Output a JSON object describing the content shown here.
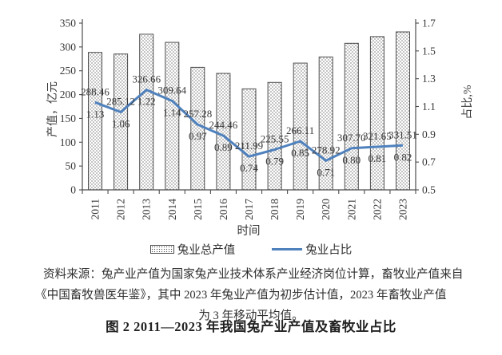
{
  "figure": {
    "source_note_lines": [
      "资料来源：兔产业产值为国家兔产业技术体系产业经济岗位计算，畜牧业产值来自",
      "《中国畜牧兽医年鉴》，其中 2023 年兔业产值为初步估计值，2023 年畜牧业产值",
      "为 3 年移动平均值。"
    ],
    "caption": "图 2  2011—2023 年我国兔产业产值及畜牧业占比"
  },
  "chart_data": {
    "type": "bar+line combo",
    "categories": [
      "2011",
      "2012",
      "2013",
      "2014",
      "2015",
      "2016",
      "2017",
      "2018",
      "2019",
      "2020",
      "2021",
      "2022",
      "2023"
    ],
    "series": [
      {
        "name": "兔业总产值",
        "type": "bar",
        "axis": "left",
        "fill": "dotted-pattern",
        "values": [
          288.46,
          285.12,
          326.66,
          309.64,
          257.28,
          244.46,
          211.99,
          225.55,
          266.11,
          278.92,
          307.7,
          321.65,
          331.51
        ]
      },
      {
        "name": "兔业占比",
        "type": "line",
        "axis": "right",
        "color": "#4f81bd",
        "values": [
          1.13,
          1.06,
          1.22,
          1.14,
          0.97,
          0.89,
          0.74,
          0.79,
          0.85,
          0.71,
          0.8,
          0.81,
          0.82
        ]
      }
    ],
    "left_axis": {
      "title": "产值，亿元",
      "min": 0,
      "max": 350,
      "tick_step": 50
    },
    "right_axis": {
      "title": "占比,%",
      "min": 0.5,
      "max": 1.7,
      "tick_step": 0.2
    },
    "x_axis": {
      "title": "时间"
    },
    "legend": {
      "position": "bottom",
      "items": [
        "兔业总产值",
        "兔业占比"
      ]
    },
    "grid": false,
    "data_labels": "shown for both series (value above line point, ratio below)"
  }
}
